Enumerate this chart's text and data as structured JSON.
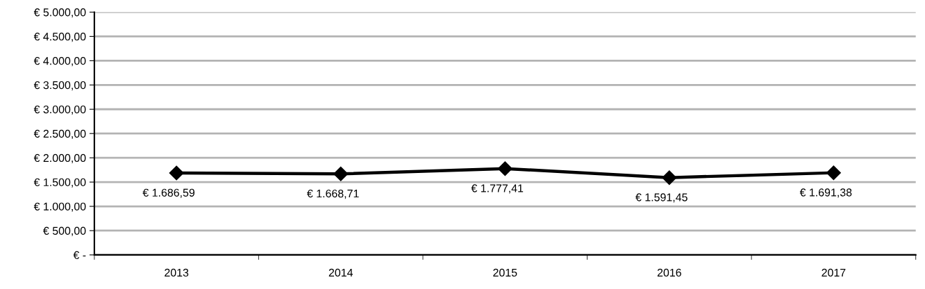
{
  "chart_data": {
    "type": "line",
    "categories": [
      "2013",
      "2014",
      "2015",
      "2016",
      "2017"
    ],
    "series": [
      {
        "color": "#000000",
        "values": [
          1686.59,
          1668.71,
          1777.41,
          1591.45,
          1691.38
        ],
        "value_labels": [
          "€ 1.686,59",
          "€ 1.668,71",
          "€ 1.777,41",
          "€ 1.591,45",
          "€ 1.691,38"
        ]
      }
    ],
    "ylim": [
      0,
      5000
    ],
    "yticks": [
      {
        "value": 0,
        "label": "€ -"
      },
      {
        "value": 500,
        "label": "€ 500,00"
      },
      {
        "value": 1000,
        "label": "€ 1.000,00"
      },
      {
        "value": 1500,
        "label": "€ 1.500,00"
      },
      {
        "value": 2000,
        "label": "€ 2.000,00"
      },
      {
        "value": 2500,
        "label": "€ 2.500,00"
      },
      {
        "value": 3000,
        "label": "€ 3.000,00"
      },
      {
        "value": 3500,
        "label": "€ 3.500,00"
      },
      {
        "value": 4000,
        "label": "€ 4.000,00"
      },
      {
        "value": 4500,
        "label": "€ 4.500,00"
      },
      {
        "value": 5000,
        "label": "€ 5.000,00"
      }
    ],
    "grid": "y",
    "marker": "diamond",
    "line_style": "solid",
    "legend": false
  }
}
